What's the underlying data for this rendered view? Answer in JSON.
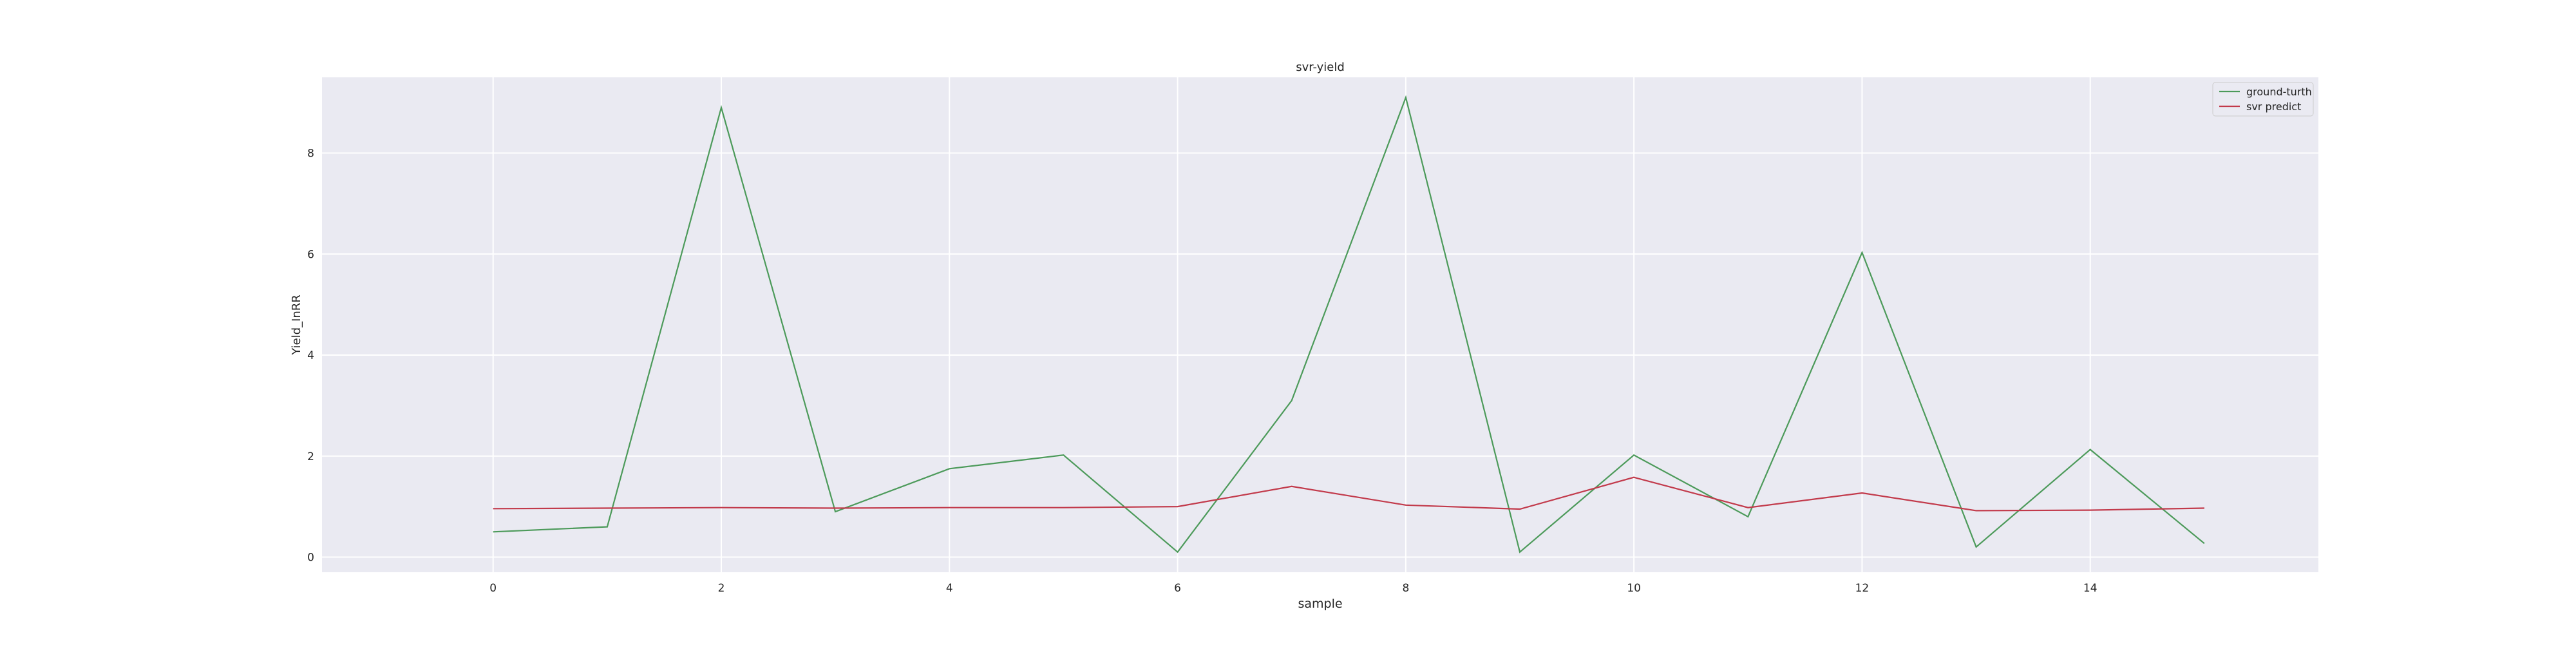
{
  "chart_data": {
    "type": "line",
    "title": "svr-yield",
    "xlabel": "sample",
    "ylabel": "Yield_InRR",
    "xlim": [
      -1.5,
      16.0
    ],
    "ylim": [
      -0.3,
      9.5
    ],
    "x_ticks": [
      0,
      2,
      4,
      6,
      8,
      10,
      12,
      14
    ],
    "y_ticks": [
      0,
      2,
      4,
      6,
      8
    ],
    "grid": true,
    "legend_position": "top-right",
    "x": [
      0,
      1,
      2,
      3,
      4,
      5,
      6,
      7,
      8,
      9,
      10,
      11,
      12,
      13,
      14,
      15
    ],
    "series": [
      {
        "name": "ground-turth",
        "color": "#4c9a5a",
        "values": [
          0.5,
          0.6,
          8.9,
          0.9,
          1.75,
          2.02,
          0.1,
          3.1,
          9.1,
          0.1,
          2.02,
          0.8,
          6.03,
          0.2,
          2.13,
          0.27
        ]
      },
      {
        "name": "svr predict",
        "color": "#c23a4b",
        "values": [
          0.96,
          0.97,
          0.98,
          0.97,
          0.98,
          0.98,
          1.0,
          1.4,
          1.03,
          0.95,
          1.58,
          0.98,
          1.27,
          0.92,
          0.93,
          0.97
        ]
      }
    ],
    "colors": {
      "plot_background": "#eaeaf2",
      "grid": "#ffffff"
    }
  }
}
